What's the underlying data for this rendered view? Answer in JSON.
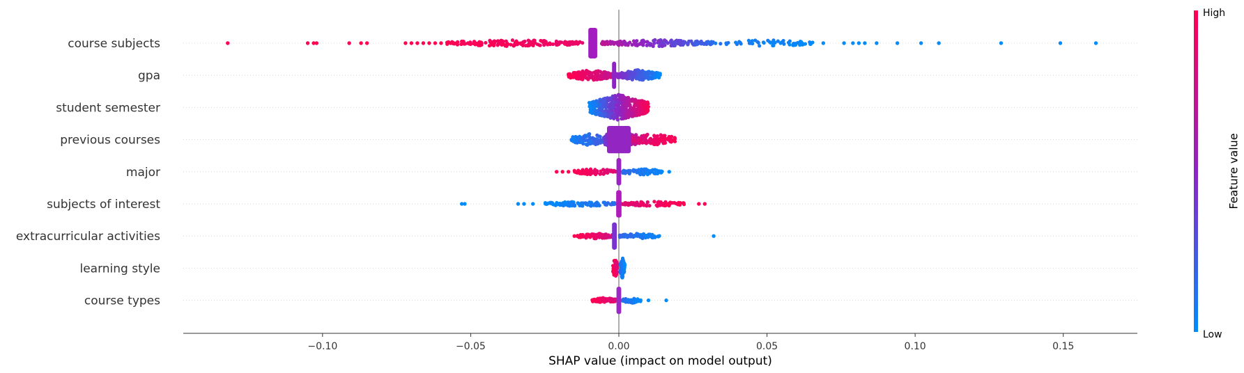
{
  "chart_data": {
    "type": "scatter",
    "subtype": "shap-beeswarm-summary",
    "xlabel": "SHAP value (impact on model output)",
    "xlim": [
      -0.147,
      0.175
    ],
    "xticks": [
      -0.1,
      -0.05,
      0.0,
      0.05,
      0.1,
      0.15
    ],
    "xtick_labels": [
      "−0.10",
      "−0.05",
      "0.00",
      "0.05",
      "0.10",
      "0.15"
    ],
    "zero_line": 0.0,
    "colorbar": {
      "title": "Feature value",
      "high_label": "High",
      "low_label": "Low",
      "high_color": "#ff0052",
      "mid_color": "#8e24c5",
      "low_color": "#008bfb"
    },
    "features": [
      {
        "name": "course subjects",
        "cluster": {
          "center": -0.0088,
          "half": 0.0015,
          "height": 0.95,
          "color": "#a31cc0"
        },
        "dense": [
          {
            "from": -0.058,
            "to": -0.012,
            "n": 180,
            "t": [
              1.0,
              0.9
            ]
          },
          {
            "from": -0.006,
            "to": 0.032,
            "n": 190,
            "t": [
              0.7,
              0.15
            ]
          },
          {
            "from": 0.032,
            "to": 0.066,
            "n": 60,
            "t": [
              0.1,
              0.0
            ]
          }
        ],
        "points": [
          {
            "x": -0.132,
            "t": 1.0
          },
          {
            "x": -0.105,
            "t": 1.0
          },
          {
            "x": -0.103,
            "t": 1.0
          },
          {
            "x": -0.102,
            "t": 1.0
          },
          {
            "x": -0.091,
            "t": 1.0
          },
          {
            "x": -0.087,
            "t": 1.0
          },
          {
            "x": -0.085,
            "t": 1.0
          },
          {
            "x": -0.072,
            "t": 1.0
          },
          {
            "x": -0.07,
            "t": 1.0
          },
          {
            "x": -0.068,
            "t": 1.0
          },
          {
            "x": -0.066,
            "t": 1.0
          },
          {
            "x": -0.064,
            "t": 1.0
          },
          {
            "x": -0.062,
            "t": 1.0
          },
          {
            "x": -0.06,
            "t": 1.0
          },
          {
            "x": 0.069,
            "t": 0.0
          },
          {
            "x": 0.076,
            "t": 0.0
          },
          {
            "x": 0.079,
            "t": 0.0
          },
          {
            "x": 0.081,
            "t": 0.0
          },
          {
            "x": 0.083,
            "t": 0.0
          },
          {
            "x": 0.087,
            "t": 0.0
          },
          {
            "x": 0.094,
            "t": 0.0
          },
          {
            "x": 0.102,
            "t": 0.0
          },
          {
            "x": 0.108,
            "t": 0.0
          },
          {
            "x": 0.129,
            "t": 0.0
          },
          {
            "x": 0.149,
            "t": 0.0
          },
          {
            "x": 0.161,
            "t": 0.0
          }
        ]
      },
      {
        "name": "gpa",
        "cluster": {
          "center": -0.0016,
          "half": 0.0007,
          "height": 0.85,
          "color": "#8e24c5"
        },
        "dense": [
          {
            "from": -0.017,
            "to": -0.002,
            "n": 170,
            "t": [
              1.0,
              0.75
            ],
            "spread": 0.4
          },
          {
            "from": -0.001,
            "to": 0.014,
            "n": 170,
            "t": [
              0.5,
              0.0
            ],
            "spread": 0.4
          }
        ],
        "points": []
      },
      {
        "name": "student semester",
        "cluster": null,
        "dense": [
          {
            "from": -0.01,
            "to": 0.01,
            "n": 520,
            "t": [
              0.0,
              1.0
            ],
            "spread": 0.95
          }
        ],
        "points": []
      },
      {
        "name": "previous courses",
        "cluster": {
          "center": 0.0,
          "half": 0.004,
          "height": 0.85,
          "color": "#9326c3"
        },
        "dense": [
          {
            "from": -0.016,
            "to": -0.004,
            "n": 110,
            "t": [
              0.05,
              0.25
            ],
            "spread": 0.45
          },
          {
            "from": -0.005,
            "to": 0.006,
            "n": 140,
            "t": [
              0.4,
              0.7
            ],
            "spread": 0.85
          },
          {
            "from": 0.004,
            "to": 0.019,
            "n": 110,
            "t": [
              0.8,
              1.0
            ],
            "spread": 0.45
          }
        ],
        "points": []
      },
      {
        "name": "major",
        "cluster": {
          "center": 0.0,
          "half": 0.0008,
          "height": 0.85,
          "color": "#9a24c2"
        },
        "dense": [
          {
            "from": -0.015,
            "to": -0.001,
            "n": 70,
            "t": [
              1.0,
              0.85
            ],
            "spread": 0.25
          },
          {
            "from": 0.001,
            "to": 0.015,
            "n": 70,
            "t": [
              0.15,
              0.0
            ],
            "spread": 0.25
          }
        ],
        "points": [
          {
            "x": -0.021,
            "t": 1.0
          },
          {
            "x": -0.019,
            "t": 1.0
          },
          {
            "x": -0.017,
            "t": 1.0
          },
          {
            "x": 0.017,
            "t": 0.0
          }
        ]
      },
      {
        "name": "subjects of interest",
        "cluster": {
          "center": 0.0,
          "half": 0.0009,
          "height": 0.85,
          "color": "#b01cbb"
        },
        "dense": [
          {
            "from": -0.025,
            "to": -0.001,
            "n": 90,
            "t": [
              0.0,
              0.15
            ],
            "spread": 0.2
          },
          {
            "from": 0.001,
            "to": 0.022,
            "n": 90,
            "t": [
              0.85,
              1.0
            ],
            "spread": 0.2
          }
        ],
        "points": [
          {
            "x": -0.053,
            "t": 0.0
          },
          {
            "x": -0.052,
            "t": 0.0
          },
          {
            "x": -0.034,
            "t": 0.0
          },
          {
            "x": -0.032,
            "t": 0.0
          },
          {
            "x": -0.029,
            "t": 0.0
          },
          {
            "x": 0.027,
            "t": 1.0
          },
          {
            "x": 0.029,
            "t": 1.0
          }
        ]
      },
      {
        "name": "extracurricular activities",
        "cluster": {
          "center": -0.0015,
          "half": 0.0008,
          "height": 0.85,
          "color": "#7a33cf"
        },
        "dense": [
          {
            "from": -0.014,
            "to": -0.001,
            "n": 80,
            "t": [
              1.0,
              0.8
            ],
            "spread": 0.2
          },
          {
            "from": 0.0,
            "to": 0.014,
            "n": 80,
            "t": [
              0.2,
              0.0
            ],
            "spread": 0.2
          }
        ],
        "points": [
          {
            "x": -0.015,
            "t": 1.0
          },
          {
            "x": 0.032,
            "t": 0.0
          }
        ]
      },
      {
        "name": "learning style",
        "cluster": null,
        "dense": [
          {
            "from": -0.002,
            "to": -0.0005,
            "n": 70,
            "t": [
              1.0,
              0.85
            ],
            "spread": 0.8
          },
          {
            "from": 0.0005,
            "to": 0.002,
            "n": 70,
            "t": [
              0.15,
              0.0
            ],
            "spread": 0.8
          }
        ],
        "points": []
      },
      {
        "name": "course types",
        "cluster": {
          "center": 0.0,
          "half": 0.0008,
          "height": 0.85,
          "color": "#9b2ac4"
        },
        "dense": [
          {
            "from": -0.009,
            "to": -0.001,
            "n": 70,
            "t": [
              1.0,
              0.85
            ],
            "spread": 0.2
          },
          {
            "from": 0.001,
            "to": 0.008,
            "n": 50,
            "t": [
              0.15,
              0.0
            ],
            "spread": 0.2
          }
        ],
        "points": [
          {
            "x": 0.01,
            "t": 0.0
          },
          {
            "x": 0.016,
            "t": 0.0
          }
        ]
      }
    ]
  }
}
